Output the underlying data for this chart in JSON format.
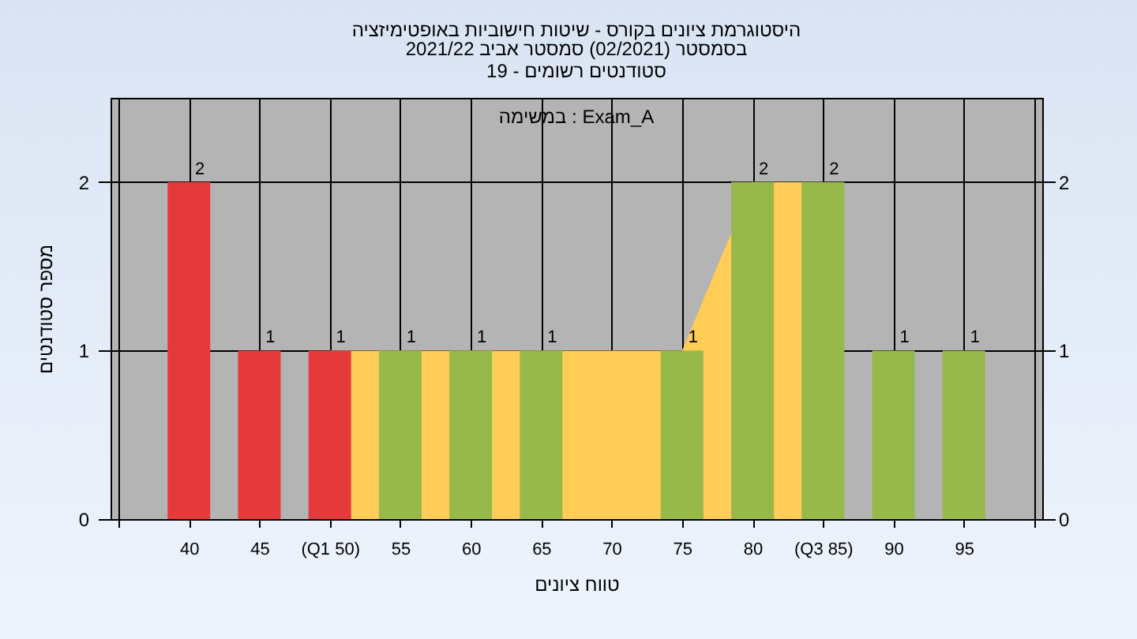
{
  "chart_data": {
    "type": "bar",
    "title": "היסטוגרמת ציונים בקורס - שיטות חישוביות באופטימיזציה",
    "subtitle": "בסמסטר  (02/2021)  סמסטר אביב 2021/22\nסטודנטים רשומים - 19",
    "xlabel": "טווח ציונים",
    "ylabel": "מספר סטודנטים",
    "annotations": [
      "במשימה : Exam_A"
    ],
    "series": [
      {
        "type": "area",
        "color": "#ffcc55",
        "x": [
          50,
          55,
          60,
          65,
          70,
          75,
          80,
          85
        ],
        "values": [
          1,
          1,
          1,
          1,
          1,
          1,
          2,
          2
        ]
      },
      {
        "x": [
          40,
          45,
          50,
          55,
          60,
          65,
          75,
          80,
          85,
          90,
          95
        ],
        "values": [
          2,
          1,
          1,
          1,
          1,
          1,
          1,
          2,
          2,
          1,
          1
        ],
        "value_labels": [
          "2",
          "1",
          "1",
          "1",
          "1",
          "1",
          "1",
          "2",
          "2",
          "1",
          "1"
        ],
        "colors": [
          "#e53a3c",
          "#e53a3c",
          "#e53a3c",
          "#96b94a",
          "#96b94a",
          "#96b94a",
          "#96b94a",
          "#96b94a",
          "#96b94a",
          "#96b94a",
          "#96b94a"
        ]
      }
    ],
    "xlim": [
      35,
      100
    ],
    "xticks": [
      {
        "value": 35,
        "label": null
      },
      40,
      45,
      {
        "value": 50,
        "label": "(Q1 50)"
      },
      55,
      60,
      65,
      70,
      75,
      80,
      {
        "value": 85,
        "label": "(Q3 85)"
      },
      90,
      95,
      {
        "value": 100,
        "label": null
      }
    ],
    "ylim": [
      0,
      2.5
    ],
    "yticks": [
      0,
      1,
      2
    ],
    "y2lim": [
      0,
      2.5
    ],
    "y2ticks": [
      0,
      1,
      2
    ],
    "grid": true
  }
}
